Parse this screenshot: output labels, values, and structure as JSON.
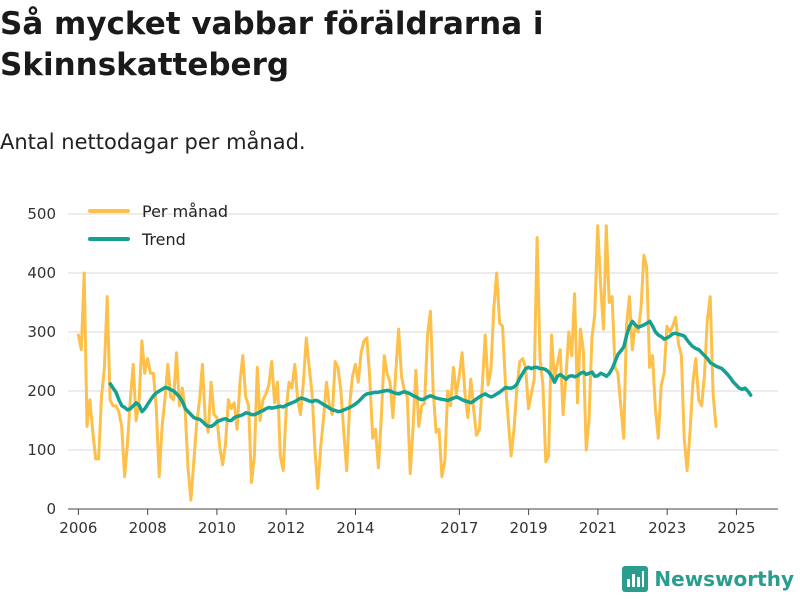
{
  "title": "Så mycket vabbar föräldrarna i Skinnskatteberg",
  "subtitle": "Antal nettodagar per månad.",
  "brand": {
    "name": "Newsworthy",
    "icon": "newsworthy-logo-icon"
  },
  "colors": {
    "monthly": "#fdc04a",
    "trend": "#14a192",
    "grid": "#d9d9d9",
    "axis": "#444444"
  },
  "chart_data": {
    "type": "line",
    "title": "Så mycket vabbar föräldrarna i Skinnskatteberg",
    "subtitle": "Antal nettodagar per månad.",
    "xlabel": "",
    "ylabel": "",
    "ylim": [
      0,
      500
    ],
    "xlim": [
      2005.7,
      2026.2
    ],
    "grid": true,
    "legend_position": "top-left",
    "y_ticks": [
      0,
      100,
      200,
      300,
      400,
      500
    ],
    "x_ticks": [
      {
        "value": 2006,
        "label": "2006"
      },
      {
        "value": 2008,
        "label": "2008"
      },
      {
        "value": 2010,
        "label": "2010"
      },
      {
        "value": 2012,
        "label": "2012"
      },
      {
        "value": 2014,
        "label": "2014"
      },
      {
        "value": 2017,
        "label": "2017"
      },
      {
        "value": 2019,
        "label": "2019"
      },
      {
        "value": 2021,
        "label": "2021"
      },
      {
        "value": 2023,
        "label": "2023"
      },
      {
        "value": 2025,
        "label": "2025"
      }
    ],
    "series": [
      {
        "name": "Per månad",
        "color": "#fdc04a",
        "start": 2006.0,
        "step": 0.0833,
        "values": [
          295,
          270,
          400,
          140,
          185,
          130,
          85,
          85,
          190,
          240,
          360,
          185,
          175,
          175,
          165,
          140,
          55,
          110,
          185,
          245,
          150,
          180,
          285,
          230,
          255,
          230,
          230,
          170,
          55,
          140,
          185,
          245,
          190,
          185,
          265,
          175,
          205,
          170,
          70,
          15,
          80,
          145,
          185,
          245,
          150,
          130,
          215,
          160,
          155,
          105,
          75,
          110,
          185,
          170,
          180,
          135,
          215,
          260,
          190,
          175,
          45,
          90,
          240,
          150,
          185,
          195,
          210,
          250,
          180,
          215,
          90,
          65,
          165,
          215,
          205,
          245,
          185,
          160,
          215,
          290,
          240,
          195,
          100,
          35,
          105,
          155,
          215,
          175,
          160,
          250,
          240,
          200,
          130,
          65,
          175,
          225,
          245,
          215,
          265,
          285,
          290,
          220,
          120,
          135,
          70,
          155,
          260,
          230,
          215,
          155,
          230,
          305,
          225,
          200,
          190,
          60,
          140,
          235,
          140,
          175,
          180,
          295,
          335,
          200,
          130,
          135,
          55,
          80,
          200,
          175,
          240,
          195,
          225,
          265,
          195,
          155,
          220,
          170,
          125,
          135,
          210,
          295,
          210,
          235,
          340,
          400,
          315,
          310,
          215,
          150,
          90,
          135,
          205,
          250,
          255,
          240,
          170,
          195,
          220,
          460,
          255,
          210,
          80,
          90,
          295,
          220,
          245,
          270,
          160,
          225,
          300,
          260,
          365,
          180,
          305,
          270,
          100,
          150,
          290,
          330,
          480,
          380,
          305,
          480,
          350,
          360,
          240,
          230,
          175,
          120,
          310,
          360,
          270,
          310,
          300,
          340,
          430,
          410,
          240,
          260,
          170,
          120,
          210,
          230,
          310,
          300,
          310,
          325,
          280,
          260,
          120,
          65,
          130,
          215,
          255,
          185,
          175,
          225,
          320,
          360,
          195,
          140
        ]
      },
      {
        "name": "Trend",
        "color": "#14a192",
        "start": 2006.92,
        "step": 0.0833,
        "values": [
          212,
          205,
          198,
          185,
          175,
          172,
          168,
          170,
          175,
          180,
          176,
          165,
          170,
          178,
          185,
          192,
          197,
          200,
          203,
          206,
          205,
          202,
          200,
          195,
          190,
          182,
          170,
          165,
          160,
          155,
          153,
          152,
          148,
          143,
          140,
          140,
          143,
          148,
          150,
          152,
          153,
          150,
          150,
          155,
          157,
          158,
          160,
          163,
          162,
          160,
          160,
          162,
          165,
          167,
          170,
          172,
          171,
          172,
          173,
          174,
          173,
          176,
          178,
          180,
          182,
          185,
          188,
          187,
          185,
          183,
          182,
          184,
          183,
          180,
          177,
          174,
          171,
          168,
          167,
          165,
          166,
          168,
          170,
          172,
          175,
          178,
          182,
          187,
          192,
          195,
          196,
          197,
          198,
          198,
          199,
          200,
          201,
          200,
          198,
          196,
          195,
          197,
          199,
          197,
          195,
          192,
          190,
          187,
          185,
          187,
          190,
          192,
          190,
          188,
          187,
          186,
          185,
          184,
          186,
          188,
          190,
          188,
          185,
          183,
          182,
          180,
          183,
          187,
          190,
          193,
          195,
          192,
          190,
          192,
          195,
          198,
          202,
          206,
          205,
          205,
          207,
          212,
          222,
          230,
          238,
          240,
          238,
          240,
          240,
          238,
          238,
          236,
          232,
          225,
          215,
          225,
          228,
          224,
          220,
          225,
          226,
          224,
          226,
          230,
          232,
          228,
          230,
          232,
          225,
          226,
          230,
          228,
          225,
          230,
          238,
          250,
          262,
          268,
          275,
          295,
          310,
          318,
          312,
          308,
          310,
          312,
          315,
          318,
          310,
          300,
          295,
          292,
          288,
          290,
          293,
          297,
          298,
          296,
          295,
          293,
          286,
          280,
          275,
          272,
          270,
          265,
          260,
          255,
          248,
          245,
          242,
          240,
          238,
          233,
          228,
          222,
          215,
          210,
          205,
          203,
          205,
          200,
          193
        ]
      }
    ]
  }
}
